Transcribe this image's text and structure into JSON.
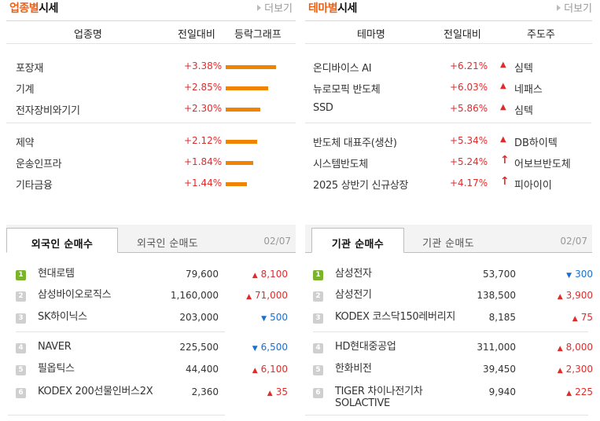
{
  "industry": {
    "title_orange": "업종별",
    "title_rest": "시세",
    "more": "더보기",
    "col_name": "업종명",
    "col_change": "전일대비",
    "col_graph": "등락그래프",
    "rows": [
      {
        "name": "포장재",
        "rate": "+3.38%",
        "value": 3.38
      },
      {
        "name": "기계",
        "rate": "+2.85%",
        "value": 2.85
      },
      {
        "name": "전자장비와기기",
        "rate": "+2.30%",
        "value": 2.3
      },
      {
        "name": "제약",
        "rate": "+2.12%",
        "value": 2.12
      },
      {
        "name": "운송인프라",
        "rate": "+1.84%",
        "value": 1.84
      },
      {
        "name": "기타금융",
        "rate": "+1.44%",
        "value": 1.44
      }
    ]
  },
  "theme": {
    "title_orange": "테마별",
    "title_rest": "시세",
    "more": "더보기",
    "col_name": "테마명",
    "col_change": "전일대비",
    "col_lead": "주도주",
    "rows": [
      {
        "name": "온디바이스 AI",
        "rate": "+6.21%",
        "lead": "심텍",
        "mark": "▲"
      },
      {
        "name": "뉴로모픽 반도체",
        "rate": "+6.03%",
        "lead": "네패스",
        "mark": "▲"
      },
      {
        "name": "SSD",
        "rate": "+5.86%",
        "lead": "심텍",
        "mark": "▲"
      },
      {
        "name": "반도체 대표주(생산)",
        "rate": "+5.34%",
        "lead": "DB하이텍",
        "mark": "▲"
      },
      {
        "name": "시스템반도체",
        "rate": "+5.24%",
        "lead": "어보브반도체",
        "mark": "↑"
      },
      {
        "name": "2025 상반기 신규상장",
        "rate": "+4.17%",
        "lead": "피아이이",
        "mark": "↑"
      }
    ]
  },
  "foreign": {
    "tab_active": "외국인 순매수",
    "tab_inactive": "외국인 순매도",
    "date": "02/07",
    "rows": [
      {
        "rank": "1",
        "name": "현대로템",
        "price": "79,600",
        "dir": "up",
        "change": "8,100"
      },
      {
        "rank": "2",
        "name": "삼성바이오로직스",
        "price": "1,160,000",
        "dir": "up",
        "change": "71,000"
      },
      {
        "rank": "3",
        "name": "SK하이닉스",
        "price": "203,000",
        "dir": "down",
        "change": "500"
      },
      {
        "rank": "4",
        "name": "NAVER",
        "price": "225,500",
        "dir": "down",
        "change": "6,500"
      },
      {
        "rank": "5",
        "name": "필옵틱스",
        "price": "44,400",
        "dir": "up",
        "change": "6,100"
      },
      {
        "rank": "6",
        "name": "KODEX 200선물인버스2X",
        "price": "2,360",
        "dir": "up",
        "change": "35"
      }
    ]
  },
  "institution": {
    "tab_active": "기관 순매수",
    "tab_inactive": "기관 순매도",
    "date": "02/07",
    "rows": [
      {
        "rank": "1",
        "name": "삼성전자",
        "price": "53,700",
        "dir": "down",
        "change": "300"
      },
      {
        "rank": "2",
        "name": "삼성전기",
        "price": "138,500",
        "dir": "up",
        "change": "3,900"
      },
      {
        "rank": "3",
        "name": "KODEX 코스닥150레버리지",
        "price": "8,185",
        "dir": "up",
        "change": "75"
      },
      {
        "rank": "4",
        "name": "HD현대중공업",
        "price": "311,000",
        "dir": "up",
        "change": "8,000"
      },
      {
        "rank": "5",
        "name": "한화비전",
        "price": "39,450",
        "dir": "up",
        "change": "2,300"
      },
      {
        "rank": "6",
        "name": "TIGER 차이나전기차SOLACTIVE",
        "price": "9,940",
        "dir": "up",
        "change": "225"
      }
    ]
  },
  "colors": {
    "up": "#e12b2b",
    "down": "#1a6ecf",
    "bar": "#f08300",
    "accent": "#e8631a",
    "rank_top": "#7ab42b"
  },
  "icons": {
    "up_mark": "triangle-up-icon",
    "down_mark": "triangle-down-icon",
    "surge_mark": "arrow-up-icon",
    "more": "triangle-right-icon"
  }
}
